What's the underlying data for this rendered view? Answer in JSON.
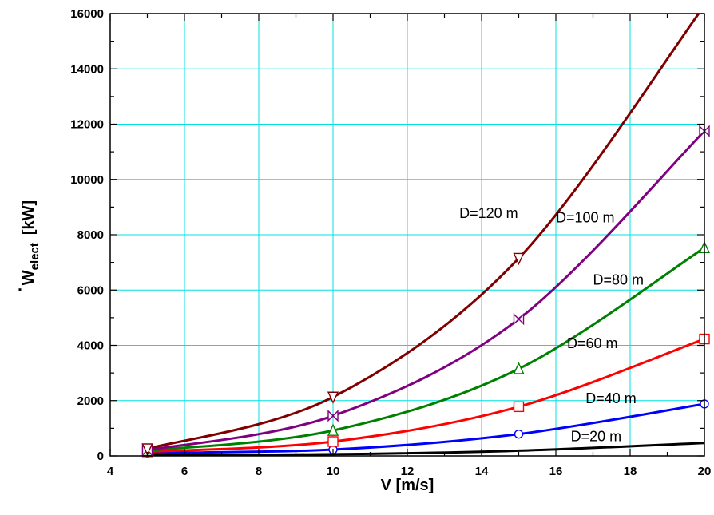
{
  "chart_data": {
    "type": "line",
    "xlabel": "V  [m/s]",
    "ylabel": {
      "main": "W",
      "subscript": "elect",
      "unit": "[kW]"
    },
    "xlim": [
      4,
      20
    ],
    "ylim": [
      0,
      16000
    ],
    "x_ticks": [
      4,
      6,
      8,
      10,
      12,
      14,
      16,
      18,
      20
    ],
    "y_ticks": [
      0,
      2000,
      4000,
      6000,
      8000,
      10000,
      12000,
      14000,
      16000
    ],
    "grid": true,
    "series": [
      {
        "name": "D=20 m",
        "color": "#000000",
        "marker": "none",
        "x": [
          5,
          10,
          15,
          20
        ],
        "y": [
          30,
          60,
          190,
          470
        ]
      },
      {
        "name": "D=40 m",
        "color": "#0000ff",
        "marker": "circle",
        "x": [
          5,
          10,
          15,
          20
        ],
        "y": [
          110,
          230,
          790,
          1880
        ]
      },
      {
        "name": "D=60 m",
        "color": "#ff0000",
        "marker": "square",
        "x": [
          5,
          10,
          15,
          20
        ],
        "y": [
          150,
          520,
          1780,
          4230
        ]
      },
      {
        "name": "D=80 m",
        "color": "#008000",
        "marker": "triangle-up",
        "x": [
          5,
          10,
          15,
          20
        ],
        "y": [
          190,
          920,
          3150,
          7530
        ]
      },
      {
        "name": "D=100 m",
        "color": "#800080",
        "marker": "bowtie",
        "x": [
          5,
          10,
          15,
          20
        ],
        "y": [
          210,
          1450,
          4950,
          11750
        ]
      },
      {
        "name": "D=120 m",
        "color": "#800000",
        "marker": "triangle-down",
        "x": [
          5,
          10,
          15,
          19.9
        ],
        "y": [
          260,
          2130,
          7150,
          16100
        ]
      }
    ],
    "annotations": [
      {
        "text": "D=20 m",
        "at": [
          16.4,
          530
        ]
      },
      {
        "text": "D=40 m",
        "at": [
          16.8,
          1900
        ]
      },
      {
        "text": "D=60 m",
        "at": [
          16.3,
          3900
        ]
      },
      {
        "text": "D=80 m",
        "at": [
          17.0,
          6200
        ]
      },
      {
        "text": "D=100 m",
        "at": [
          16.0,
          8450
        ]
      },
      {
        "text": "D=120 m",
        "at": [
          13.4,
          8600
        ]
      }
    ]
  }
}
